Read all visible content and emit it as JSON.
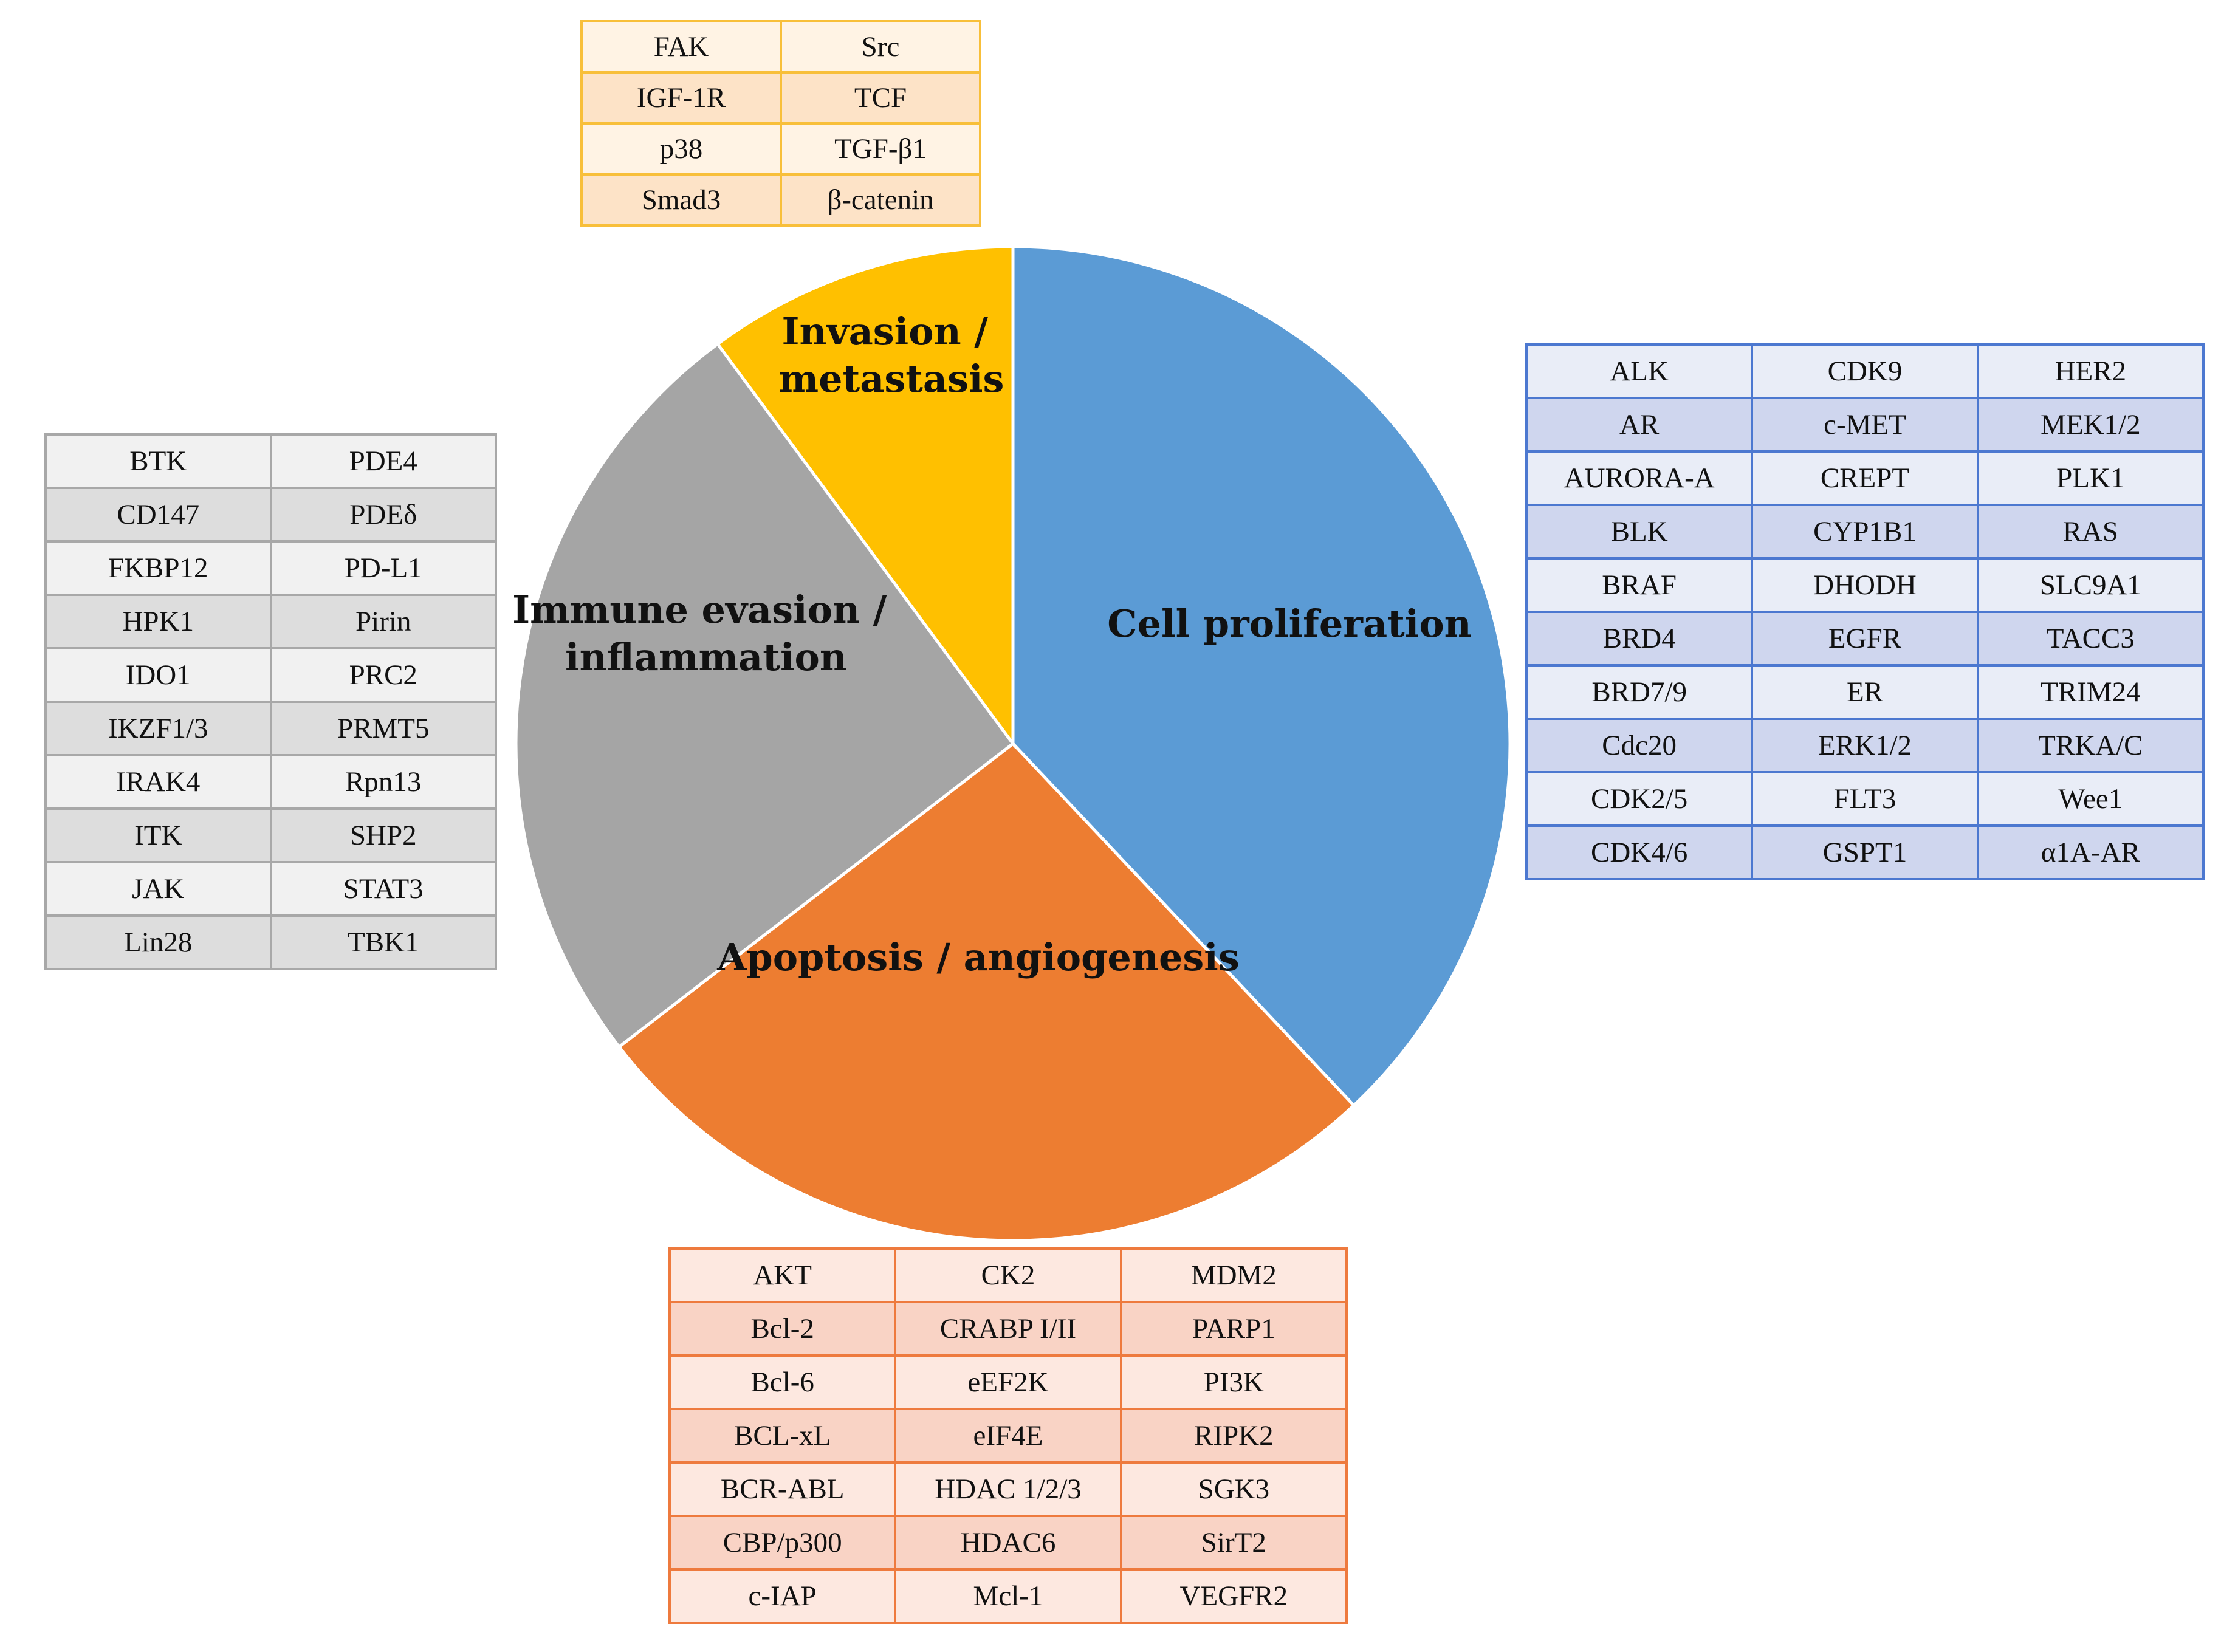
{
  "chart_data": {
    "type": "pie",
    "title": "",
    "slices": [
      {
        "label": "Cell proliferation",
        "value": 30,
        "color": "#5b9bd5"
      },
      {
        "label": "Apoptosis / angiogenesis",
        "value": 21,
        "color": "#ed7d31"
      },
      {
        "label": "Immune evasion / inflammation",
        "value": 20,
        "color": "#a5a5a5"
      },
      {
        "label": "Invasion / metastasis",
        "value": 8,
        "color": "#ffc000"
      }
    ]
  },
  "labels": {
    "prolif": [
      "Cell proliferation"
    ],
    "apop": [
      "Apoptosis / angiogenesis"
    ],
    "immune": [
      "Immune evasion /",
      "inflammation"
    ],
    "invasion": [
      "Invasion /",
      "metastasis"
    ]
  },
  "tables": {
    "invasion": [
      [
        "FAK",
        "Src"
      ],
      [
        "IGF-1R",
        "TCF"
      ],
      [
        "p38",
        "TGF-β1"
      ],
      [
        "Smad3",
        "β-catenin"
      ]
    ],
    "immune": [
      [
        "BTK",
        "PDE4"
      ],
      [
        "CD147",
        "PDEδ"
      ],
      [
        "FKBP12",
        "PD-L1"
      ],
      [
        "HPK1",
        "Pirin"
      ],
      [
        "IDO1",
        "PRC2"
      ],
      [
        "IKZF1/3",
        "PRMT5"
      ],
      [
        "IRAK4",
        "Rpn13"
      ],
      [
        "ITK",
        "SHP2"
      ],
      [
        "JAK",
        "STAT3"
      ],
      [
        "Lin28",
        "TBK1"
      ]
    ],
    "prolif": [
      [
        "ALK",
        "CDK9",
        "HER2"
      ],
      [
        "AR",
        "c-MET",
        "MEK1/2"
      ],
      [
        "AURORA-A",
        "CREPT",
        "PLK1"
      ],
      [
        "BLK",
        "CYP1B1",
        "RAS"
      ],
      [
        "BRAF",
        "DHODH",
        "SLC9A1"
      ],
      [
        "BRD4",
        "EGFR",
        "TACC3"
      ],
      [
        "BRD7/9",
        "ER",
        "TRIM24"
      ],
      [
        "Cdc20",
        "ERK1/2",
        "TRKA/C"
      ],
      [
        "CDK2/5",
        "FLT3",
        "Wee1"
      ],
      [
        "CDK4/6",
        "GSPT1",
        "α1A-AR"
      ]
    ],
    "apop": [
      [
        "AKT",
        "CK2",
        "MDM2"
      ],
      [
        "Bcl-2",
        "CRABP I/II",
        "PARP1"
      ],
      [
        "Bcl-6",
        "eEF2K",
        "PI3K"
      ],
      [
        "BCL-xL",
        "eIF4E",
        "RIPK2"
      ],
      [
        "BCR-ABL",
        "HDAC 1/2/3",
        "SGK3"
      ],
      [
        "CBP/p300",
        "HDAC6",
        "SirT2"
      ],
      [
        "c-IAP",
        "Mcl-1",
        "VEGFR2"
      ]
    ]
  }
}
